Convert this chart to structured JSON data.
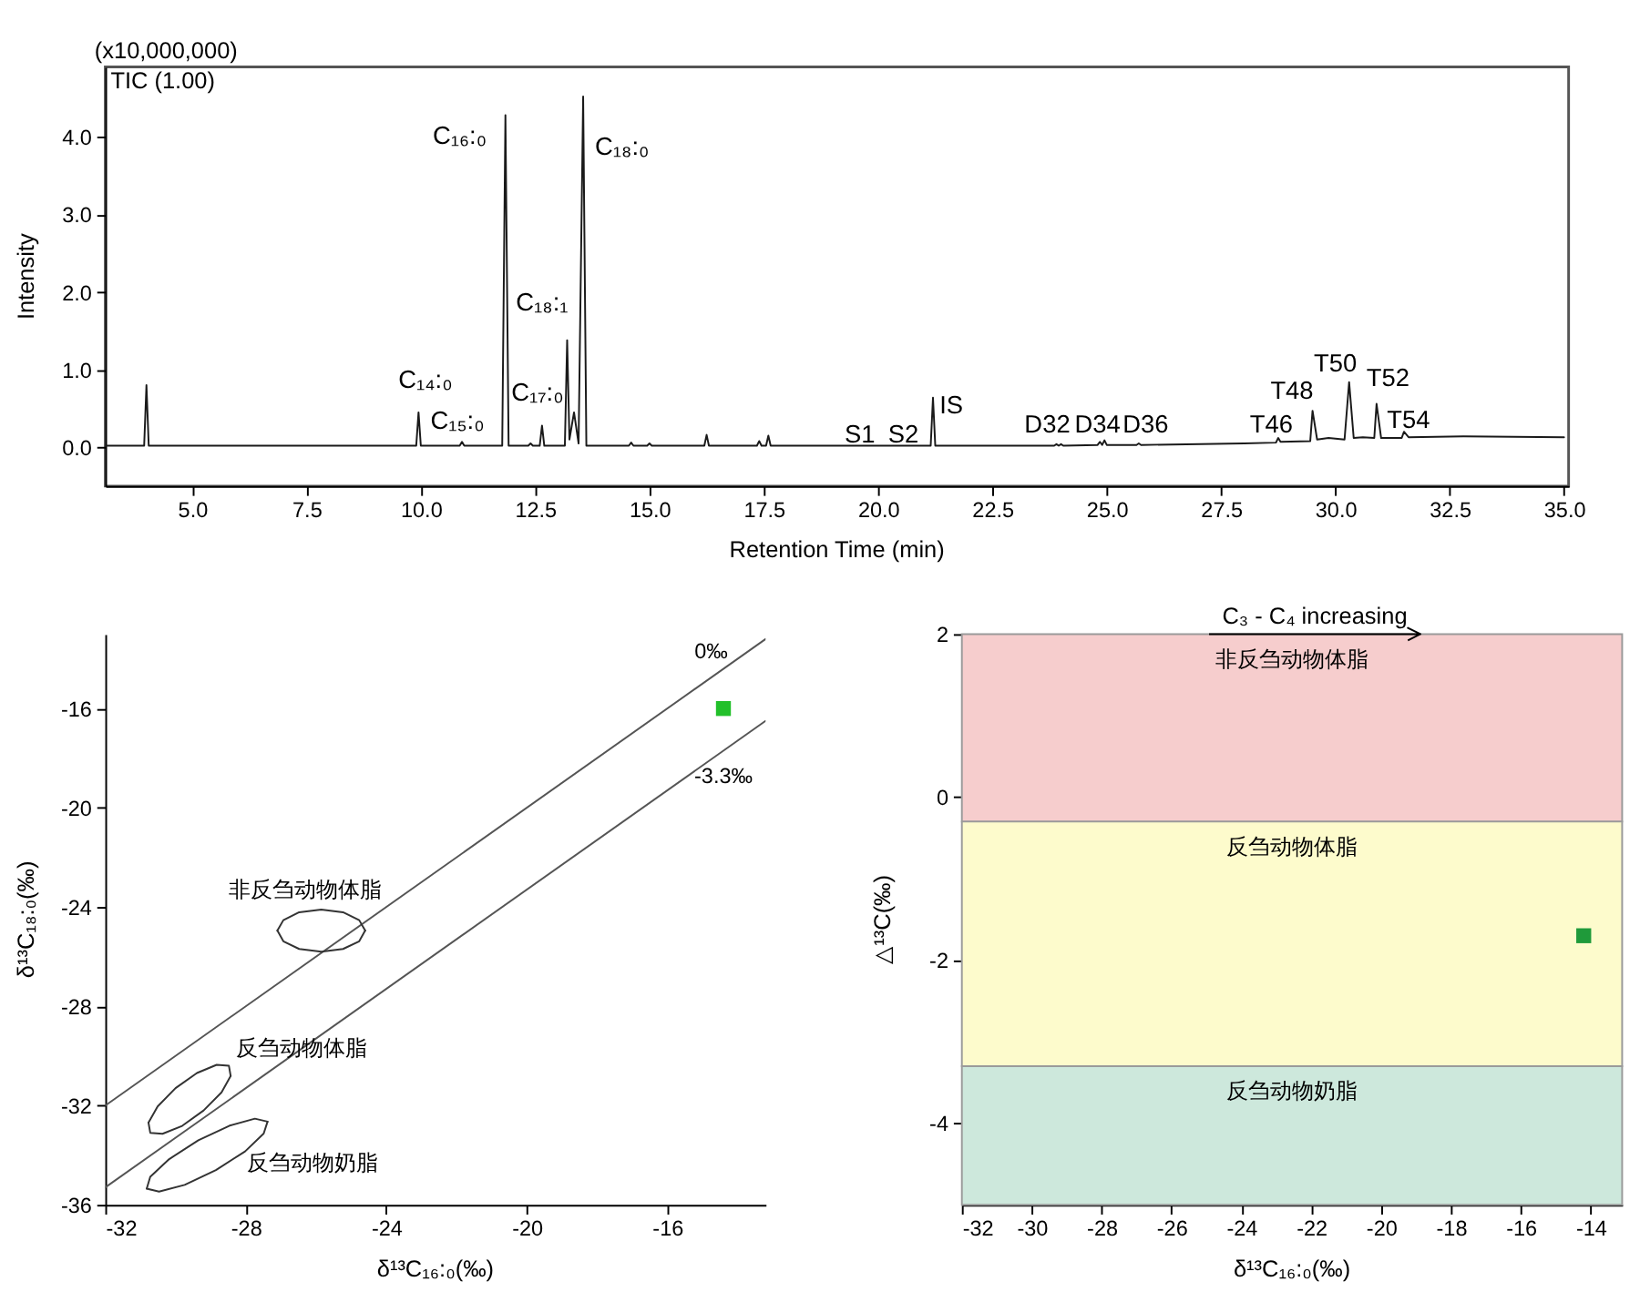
{
  "chart_data": [
    {
      "type": "line",
      "xlabel": "Retention Time (min)",
      "ylabel": "Intensity",
      "grid": false,
      "xlim": [
        3.1,
        35.1
      ],
      "ylim": [
        -0.5,
        4.9
      ],
      "xticks": [
        {
          "value": 5,
          "label": "5.0"
        },
        {
          "value": 7.5,
          "label": "7.5"
        },
        {
          "value": 10,
          "label": "10.0"
        },
        {
          "value": 12.5,
          "label": "12.5"
        },
        {
          "value": 15,
          "label": "15.0"
        },
        {
          "value": 17.5,
          "label": "17.5"
        },
        {
          "value": 20,
          "label": "20.0"
        },
        {
          "value": 22.5,
          "label": "22.5"
        },
        {
          "value": 25,
          "label": "25.0"
        },
        {
          "value": 27.5,
          "label": "27.5"
        },
        {
          "value": 30,
          "label": "30.0"
        },
        {
          "value": 32.5,
          "label": "32.5"
        },
        {
          "value": 35,
          "label": "35.0"
        }
      ],
      "yticks": [
        {
          "value": 0,
          "label": "0.0"
        },
        {
          "value": 1,
          "label": "1.0"
        },
        {
          "value": 2,
          "label": "2.0"
        },
        {
          "value": 3,
          "label": "3.0"
        },
        {
          "value": 4,
          "label": "4.0"
        }
      ],
      "series": [
        {
          "color": "#1a1a1a",
          "x": [
            3.1,
            3.95,
            4.0,
            4.05,
            9.9,
            9.95,
            10.0,
            10.85,
            10.9,
            10.95,
            11.78,
            11.85,
            11.92,
            12.35,
            12.4,
            12.45,
            12.6,
            12.65,
            12.7,
            13.15,
            13.2,
            13.25,
            13.35,
            13.45,
            13.55,
            13.62,
            14.55,
            14.6,
            14.65,
            14.95,
            15.0,
            15.05,
            16.2,
            16.25,
            16.3,
            17.35,
            17.4,
            17.45,
            17.55,
            17.6,
            17.65,
            21.15,
            21.2,
            21.25,
            23.85,
            23.9,
            23.95,
            24.0,
            24.05,
            24.8,
            24.85,
            24.9,
            24.95,
            25.0,
            25.65,
            25.7,
            25.75,
            28.0,
            28.7,
            28.75,
            28.8,
            29.45,
            29.5,
            29.6,
            29.85,
            30.2,
            30.3,
            30.4,
            30.6,
            30.85,
            30.9,
            31.0,
            31.45,
            31.5,
            31.6,
            32.8,
            35.0
          ],
          "values": [
            0.02,
            0.02,
            0.8,
            0.02,
            0.02,
            0.45,
            0.02,
            0.02,
            0.07,
            0.02,
            0.02,
            4.28,
            0.02,
            0.02,
            0.05,
            0.02,
            0.02,
            0.28,
            0.02,
            0.02,
            1.38,
            0.1,
            0.45,
            0.05,
            4.52,
            0.02,
            0.02,
            0.06,
            0.02,
            0.02,
            0.05,
            0.02,
            0.02,
            0.16,
            0.02,
            0.02,
            0.08,
            0.02,
            0.02,
            0.15,
            0.02,
            0.02,
            0.64,
            0.02,
            0.02,
            0.04,
            0.02,
            0.04,
            0.02,
            0.03,
            0.07,
            0.03,
            0.09,
            0.03,
            0.03,
            0.05,
            0.03,
            0.05,
            0.06,
            0.12,
            0.07,
            0.08,
            0.47,
            0.1,
            0.12,
            0.1,
            0.84,
            0.12,
            0.13,
            0.12,
            0.56,
            0.12,
            0.12,
            0.2,
            0.13,
            0.14,
            0.13
          ]
        }
      ],
      "annotations": [
        "(x10,000,000)",
        "TIC (1.00)",
        "C₁₄:₀",
        "C₁₅:₀",
        "C₁₆:₀",
        "C₁₇:₀",
        "C₁₈:₁",
        "C₁₈:₀",
        "S1",
        "S2",
        "IS",
        "D32",
        "D34",
        "D36",
        "T46",
        "T48",
        "T50",
        "T52",
        "T54"
      ]
    },
    {
      "type": "scatter",
      "xlabel": "δ¹³C₁₆:₀(‰)",
      "ylabel": "δ¹³C₁₈:₀(‰)",
      "grid": false,
      "xlim": [
        -32,
        -13.2
      ],
      "ylim": [
        -36,
        -13
      ],
      "xticks": [
        -32,
        -28,
        -24,
        -20,
        -16
      ],
      "yticks": [
        -36,
        -32,
        -28,
        -24,
        -20,
        -16
      ],
      "series": [
        {
          "type": "line",
          "color": "#555555",
          "x": [
            -32,
            -13.2
          ],
          "values": [
            -32,
            -13.2
          ]
        },
        {
          "type": "line",
          "color": "#555555",
          "x": [
            -32,
            -13.2
          ],
          "values": [
            -35.3,
            -16.5
          ]
        },
        {
          "type": "line",
          "color": "#333333",
          "x": [
            -27.1,
            -26.93,
            -26.48,
            -25.85,
            -25.23,
            -24.77,
            -24.6
          ],
          "values": [
            -24.95,
            -24.53,
            -24.21,
            -24.1,
            -24.21,
            -24.53,
            -24.95
          ]
        },
        {
          "type": "line",
          "color": "#333333",
          "x": [
            -27.1,
            -26.93,
            -26.48,
            -25.85,
            -25.23,
            -24.77,
            -24.6
          ],
          "values": [
            -24.95,
            -25.38,
            -25.69,
            -25.8,
            -25.69,
            -25.38,
            -24.95
          ]
        },
        {
          "type": "line",
          "color": "#333333",
          "x": [
            -30.77,
            -30.51,
            -30.0,
            -29.39,
            -28.83,
            -28.48,
            -28.43
          ],
          "values": [
            -32.69,
            -32.04,
            -31.3,
            -30.69,
            -30.36,
            -30.4,
            -30.81
          ]
        },
        {
          "type": "line",
          "color": "#333333",
          "x": [
            -30.77,
            -30.72,
            -30.37,
            -29.81,
            -29.2,
            -28.69,
            -28.43
          ],
          "values": [
            -32.69,
            -33.1,
            -33.14,
            -32.82,
            -32.2,
            -31.47,
            -30.81
          ]
        },
        {
          "type": "line",
          "color": "#333333",
          "x": [
            -30.82,
            -30.72,
            -30.18,
            -29.35,
            -28.46,
            -27.74,
            -27.38
          ],
          "values": [
            -35.35,
            -34.87,
            -34.16,
            -33.4,
            -32.81,
            -32.53,
            -32.65
          ]
        },
        {
          "type": "line",
          "color": "#333333",
          "x": [
            -30.82,
            -30.47,
            -29.74,
            -28.85,
            -28.02,
            -27.49,
            -27.38
          ],
          "values": [
            -35.35,
            -35.47,
            -35.2,
            -34.6,
            -33.85,
            -33.13,
            -32.65
          ]
        },
        {
          "type": "scatter",
          "color": "#22c02a",
          "marker": "square",
          "x": [
            -14.4
          ],
          "values": [
            -16
          ]
        }
      ],
      "annotations": [
        "0‰",
        "-3.3‰",
        "非反刍动物体脂",
        "反刍动物体脂",
        "反刍动物奶脂"
      ]
    },
    {
      "type": "scatter",
      "xlabel": "δ¹³C₁₆:₀(‰)",
      "ylabel": "△¹³C(‰)",
      "grid": false,
      "xlim": [
        -32,
        -13.1
      ],
      "ylim": [
        -5,
        2
      ],
      "xticks": [
        -32,
        -30,
        -28,
        -26,
        -24,
        -22,
        -20,
        -18,
        -16,
        -14
      ],
      "yticks": [
        -4,
        -2,
        0,
        2
      ],
      "bands": [
        {
          "axis": "y",
          "from": -0.3,
          "to": 2,
          "label": "非反刍动物体脂",
          "color": "#f6cdcd"
        },
        {
          "axis": "y",
          "from": -3.3,
          "to": -0.3,
          "label": "反刍动物体脂",
          "color": "#fdfbcc"
        },
        {
          "axis": "y",
          "from": -5,
          "to": -3.3,
          "label": "反刍动物奶脂",
          "color": "#cde8dc"
        }
      ],
      "series": [
        {
          "type": "scatter",
          "color": "#1f9a3a",
          "marker": "square",
          "x": [
            -14.2
          ],
          "values": [
            -1.7
          ]
        }
      ],
      "annotations": [
        {
          "text": "C₃ - C₄ increasing",
          "x": -21.9,
          "y": 2
        }
      ]
    }
  ]
}
